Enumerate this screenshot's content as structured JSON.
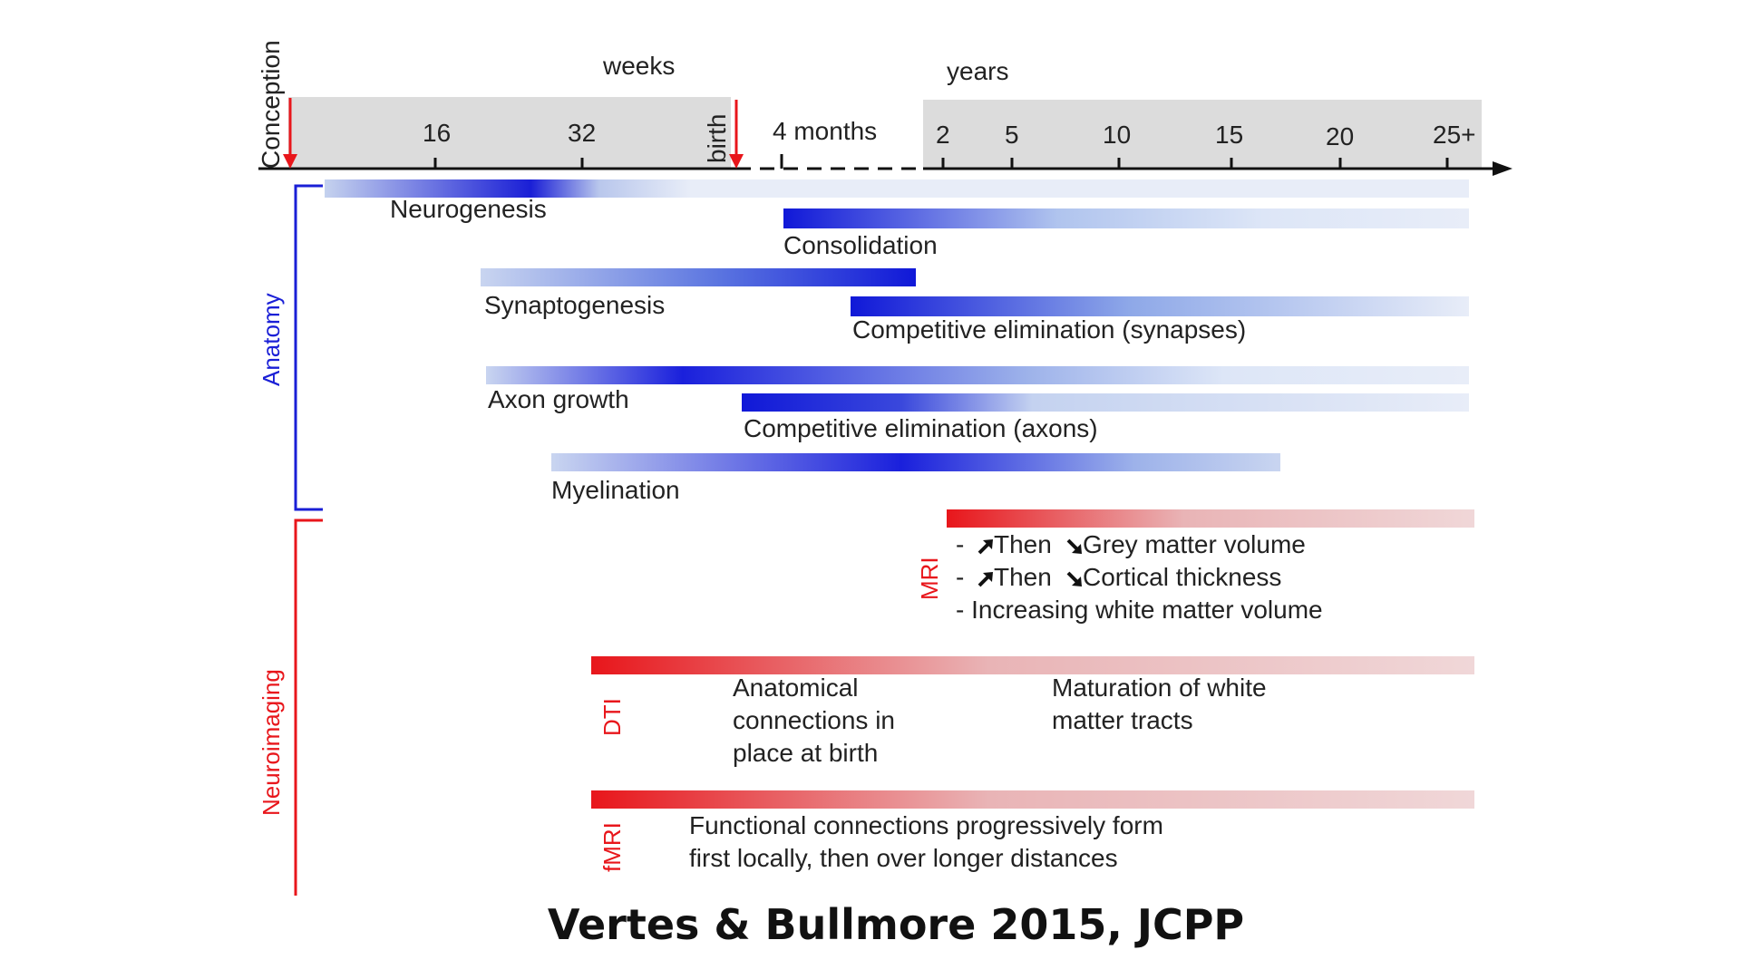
{
  "axis": {
    "conception": "Conception",
    "weeks_unit": "weeks",
    "week_ticks": [
      "16",
      "32"
    ],
    "birth": "birth",
    "months_tick": "4 months",
    "years_unit": "years",
    "year_ticks": [
      "2",
      "5",
      "10",
      "15",
      "20",
      "25+"
    ]
  },
  "groups": {
    "anatomy": "Anatomy",
    "neuroimaging": "Neuroimaging"
  },
  "bars": {
    "neurogenesis": "Neurogenesis",
    "consolidation": "Consolidation",
    "synaptogenesis": "Synaptogenesis",
    "elim_synapses": "Competitive elimination (synapses)",
    "axon_growth": "Axon growth",
    "elim_axons": "Competitive elimination (axons)",
    "myelination": "Myelination"
  },
  "imaging": {
    "mri_label": "MRI",
    "mri_items": [
      {
        "prefix": "- ",
        "then": " Then",
        "rest": " Grey matter volume"
      },
      {
        "prefix": "- ",
        "then": " Then",
        "rest": " Cortical thickness"
      }
    ],
    "mri_item3": "- Increasing white matter volume",
    "dti_label": "DTI",
    "dti_text_left": [
      "Anatomical",
      "connections in",
      "place at birth"
    ],
    "dti_text_right": [
      "Maturation of white",
      "matter tracts"
    ],
    "fmri_label": "fMRI",
    "fmri_text": [
      "Functional connections progressively form",
      "first locally, then over longer distances"
    ]
  },
  "icons": [
    "arrow-up-right-icon",
    "arrow-down-right-icon",
    "red-down-arrow-icon"
  ],
  "colors": {
    "anatomy": "#1a1fd6",
    "neuroimaging": "#e8161b",
    "axis_band": "#d9d9d9"
  },
  "citation": "Vertes & Bullmore 2015, JCPP"
}
